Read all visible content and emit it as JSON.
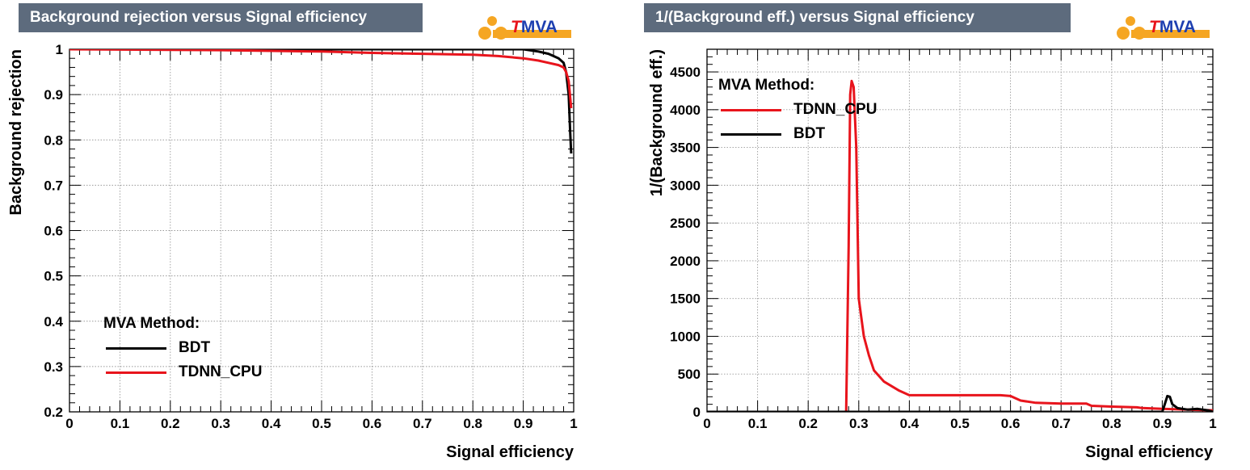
{
  "chart_data": [
    {
      "type": "line",
      "title": "Background rejection versus Signal efficiency",
      "xlabel": "Signal efficiency",
      "ylabel": "Background rejection",
      "xlim": [
        0,
        1
      ],
      "ylim": [
        0.2,
        1.0
      ],
      "xticks": [
        "0",
        "0.1",
        "0.2",
        "0.3",
        "0.4",
        "0.5",
        "0.6",
        "0.7",
        "0.8",
        "0.9",
        "1"
      ],
      "yticks": [
        "0.2",
        "0.3",
        "0.4",
        "0.5",
        "0.6",
        "0.7",
        "0.8",
        "0.9",
        "1"
      ],
      "grid": true,
      "legend": {
        "title": "MVA Method:",
        "position": "bottom-left",
        "entries": [
          {
            "name": "BDT",
            "color": "#000000"
          },
          {
            "name": "TDNN_CPU",
            "color": "#e8141c"
          }
        ]
      },
      "series": [
        {
          "name": "BDT",
          "color": "#000000",
          "x": [
            0,
            0.3,
            0.5,
            0.7,
            0.85,
            0.9,
            0.93,
            0.95,
            0.96,
            0.97,
            0.975,
            0.98,
            0.985,
            0.99,
            0.993,
            0.995
          ],
          "y": [
            1.0,
            1.0,
            1.0,
            1.0,
            1.0,
            1.0,
            0.995,
            0.99,
            0.985,
            0.98,
            0.975,
            0.97,
            0.95,
            0.9,
            0.82,
            0.77
          ]
        },
        {
          "name": "TDNN_CPU",
          "color": "#e8141c",
          "x": [
            0,
            0.3,
            0.5,
            0.6,
            0.7,
            0.8,
            0.85,
            0.9,
            0.93,
            0.95,
            0.97,
            0.98,
            0.985,
            0.99,
            0.995
          ],
          "y": [
            1.0,
            0.998,
            0.995,
            0.992,
            0.99,
            0.988,
            0.985,
            0.98,
            0.975,
            0.97,
            0.965,
            0.96,
            0.95,
            0.93,
            0.87
          ]
        }
      ]
    },
    {
      "type": "line",
      "title": "1/(Background eff.) versus Signal efficiency",
      "xlabel": "Signal efficiency",
      "ylabel": "1/(Background eff.)",
      "xlim": [
        0,
        1
      ],
      "ylim": [
        0,
        4800
      ],
      "xticks": [
        "0",
        "0.1",
        "0.2",
        "0.3",
        "0.4",
        "0.5",
        "0.6",
        "0.7",
        "0.8",
        "0.9",
        "1"
      ],
      "yticks": [
        "0",
        "500",
        "1000",
        "1500",
        "2000",
        "2500",
        "3000",
        "3500",
        "4000",
        "4500"
      ],
      "grid": true,
      "legend": {
        "title": "MVA Method:",
        "position": "top-left",
        "entries": [
          {
            "name": "TDNN_CPU",
            "color": "#e8141c"
          },
          {
            "name": "BDT",
            "color": "#000000"
          }
        ]
      },
      "series": [
        {
          "name": "TDNN_CPU",
          "color": "#e8141c",
          "x": [
            0,
            0.275,
            0.28,
            0.283,
            0.286,
            0.29,
            0.295,
            0.3,
            0.31,
            0.32,
            0.33,
            0.35,
            0.38,
            0.4,
            0.5,
            0.58,
            0.6,
            0.62,
            0.65,
            0.7,
            0.75,
            0.76,
            0.8,
            0.85,
            0.86,
            0.9,
            0.95,
            1.0
          ],
          "y": [
            0,
            0,
            2200,
            4200,
            4380,
            4300,
            3500,
            1500,
            1000,
            750,
            550,
            400,
            280,
            220,
            220,
            220,
            210,
            150,
            120,
            110,
            110,
            80,
            70,
            60,
            50,
            40,
            30,
            20
          ]
        },
        {
          "name": "BDT",
          "color": "#000000",
          "x": [
            0,
            0.3,
            0.6,
            0.9,
            0.905,
            0.91,
            0.915,
            0.92,
            0.93,
            0.95,
            0.97,
            0.99,
            1.0
          ],
          "y": [
            0,
            0,
            0,
            0,
            100,
            210,
            200,
            100,
            50,
            30,
            40,
            20,
            0
          ]
        }
      ]
    }
  ]
}
